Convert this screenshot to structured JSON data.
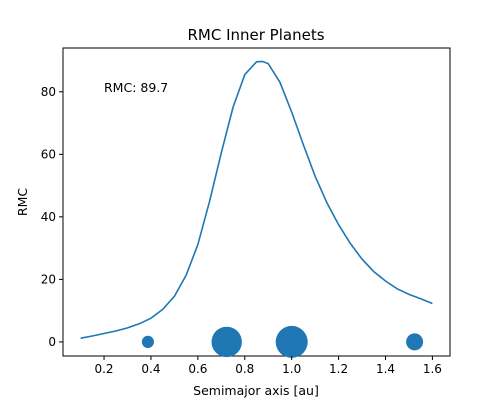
{
  "chart_data": {
    "type": "line",
    "title": "RMC Inner Planets",
    "xlabel": "Semimajor axis [au]",
    "ylabel": "RMC",
    "xlim": [
      0.025,
      1.675
    ],
    "ylim": [
      -4.5,
      94.0
    ],
    "x_ticks": [
      0.2,
      0.4,
      0.6,
      0.8,
      1.0,
      1.2,
      1.4,
      1.6
    ],
    "y_ticks": [
      0,
      20,
      40,
      60,
      80
    ],
    "grid": false,
    "annotation": "RMC: 89.7",
    "color": "#1f77b4",
    "series": [
      {
        "x": [
          0.1,
          0.15,
          0.2,
          0.25,
          0.3,
          0.35,
          0.4,
          0.45,
          0.5,
          0.55,
          0.6,
          0.65,
          0.7,
          0.75,
          0.8,
          0.85,
          0.875,
          0.9,
          0.95,
          1.0,
          1.05,
          1.1,
          1.15,
          1.2,
          1.25,
          1.3,
          1.35,
          1.4,
          1.45,
          1.5,
          1.55,
          1.6
        ],
        "y": [
          1.2,
          1.9,
          2.7,
          3.5,
          4.5,
          5.8,
          7.6,
          10.4,
          14.6,
          21.3,
          31.2,
          45.0,
          60.5,
          75.0,
          85.5,
          89.6,
          89.7,
          89.0,
          83.0,
          73.5,
          63.0,
          53.0,
          44.5,
          37.5,
          31.5,
          26.5,
          22.5,
          19.5,
          17.0,
          15.2,
          13.8,
          12.3
        ]
      }
    ],
    "planets": [
      {
        "x": 0.387,
        "y": 0,
        "size": 0.38
      },
      {
        "x": 0.723,
        "y": 0,
        "size": 0.95
      },
      {
        "x": 1.0,
        "y": 0,
        "size": 1.0
      },
      {
        "x": 1.524,
        "y": 0,
        "size": 0.53
      }
    ]
  }
}
